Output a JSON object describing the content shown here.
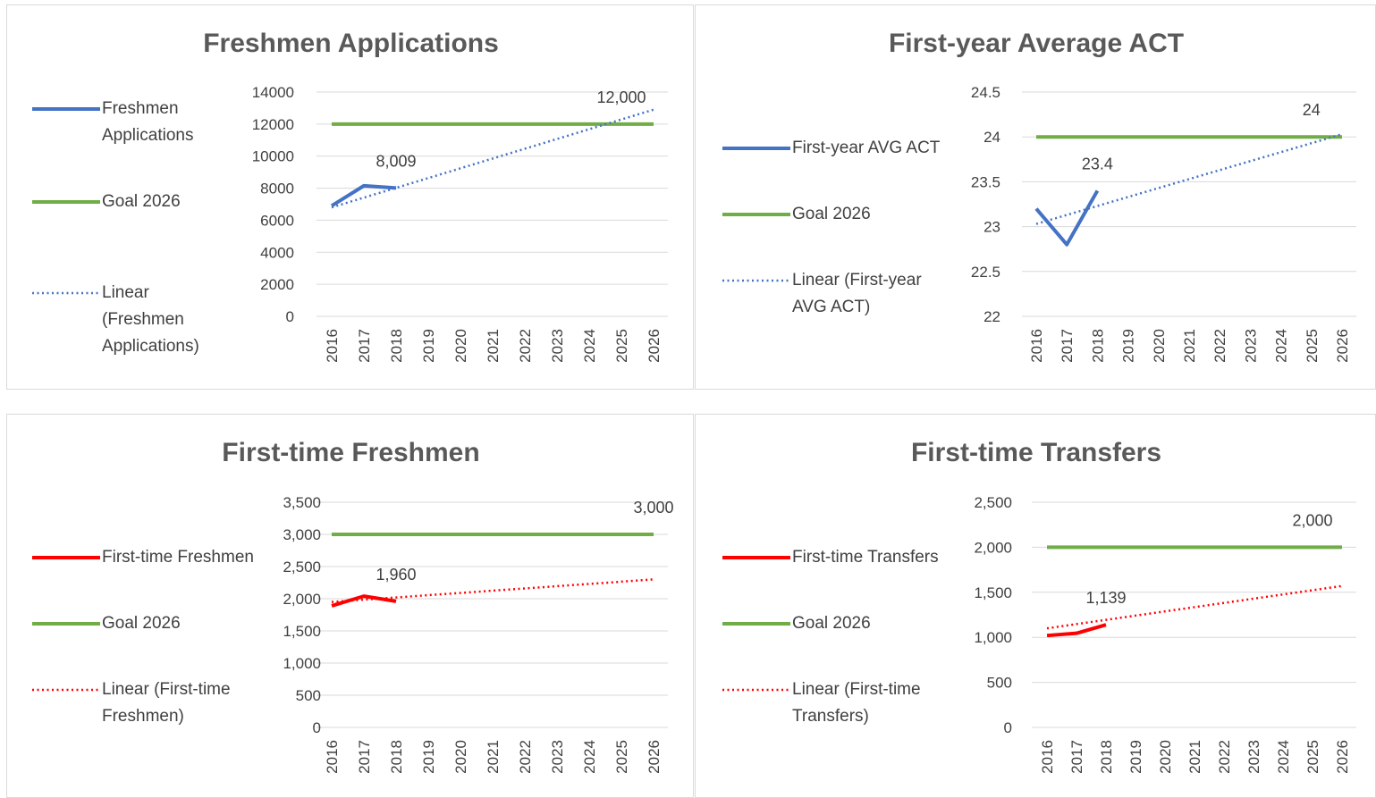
{
  "chart_data": [
    {
      "type": "line",
      "title": "Freshmen Applications",
      "categories": [
        "2016",
        "2017",
        "2018",
        "2019",
        "2020",
        "2021",
        "2022",
        "2023",
        "2024",
        "2025",
        "2026"
      ],
      "ylim": [
        0,
        14000
      ],
      "yticks": [
        0,
        2000,
        4000,
        6000,
        8000,
        10000,
        12000,
        14000
      ],
      "grid": true,
      "legend": "left",
      "series": [
        {
          "name": "Freshmen Applications",
          "color": "#4472c4",
          "line_style": "solid",
          "values": [
            6900,
            8150,
            8009,
            null,
            null,
            null,
            null,
            null,
            null,
            null,
            null
          ],
          "value_labels": [
            null,
            null,
            "8,009",
            null,
            null,
            null,
            null,
            null,
            null,
            null,
            null
          ]
        },
        {
          "name": "Goal 2026",
          "color": "#70ad47",
          "line_style": "solid",
          "values": [
            12000,
            12000,
            12000,
            12000,
            12000,
            12000,
            12000,
            12000,
            12000,
            12000,
            12000
          ],
          "value_labels": [
            null,
            null,
            null,
            null,
            null,
            null,
            null,
            null,
            null,
            "12,000",
            null
          ]
        },
        {
          "name": "Linear (Freshmen Applications)",
          "color": "#4472c4",
          "line_style": "dotted",
          "values": [
            6800,
            7410,
            8020,
            8630,
            9240,
            9850,
            10460,
            11070,
            11680,
            12290,
            12900
          ]
        }
      ]
    },
    {
      "type": "line",
      "title": "First-year Average ACT",
      "categories": [
        "2016",
        "2017",
        "2018",
        "2019",
        "2020",
        "2021",
        "2022",
        "2023",
        "2024",
        "2025",
        "2026"
      ],
      "ylim": [
        22,
        24.5
      ],
      "yticks": [
        22,
        22.5,
        23,
        23.5,
        24,
        24.5
      ],
      "grid": true,
      "legend": "left",
      "series": [
        {
          "name": "First-year AVG ACT",
          "color": "#4472c4",
          "line_style": "solid",
          "values": [
            23.2,
            22.8,
            23.4,
            null,
            null,
            null,
            null,
            null,
            null,
            null,
            null
          ],
          "value_labels": [
            null,
            null,
            "23.4",
            null,
            null,
            null,
            null,
            null,
            null,
            null,
            null
          ]
        },
        {
          "name": "Goal 2026",
          "color": "#70ad47",
          "line_style": "solid",
          "values": [
            24,
            24,
            24,
            24,
            24,
            24,
            24,
            24,
            24,
            24,
            24
          ],
          "value_labels": [
            null,
            null,
            null,
            null,
            null,
            null,
            null,
            null,
            null,
            "24",
            null
          ]
        },
        {
          "name": "Linear (First-year AVG ACT)",
          "color": "#4472c4",
          "line_style": "dotted",
          "values": [
            23.03,
            23.13,
            23.23,
            23.33,
            23.43,
            23.53,
            23.63,
            23.73,
            23.83,
            23.93,
            24.03
          ]
        }
      ]
    },
    {
      "type": "line",
      "title": "First-time Freshmen",
      "categories": [
        "2016",
        "2017",
        "2018",
        "2019",
        "2020",
        "2021",
        "2022",
        "2023",
        "2024",
        "2025",
        "2026"
      ],
      "ylim": [
        0,
        3500
      ],
      "yticks": [
        0,
        500,
        {
          "value": 1000,
          "label": "1,000"
        },
        {
          "value": 1500,
          "label": "1,500"
        },
        {
          "value": 2000,
          "label": "2,000"
        },
        {
          "value": 2500,
          "label": "2,500"
        },
        {
          "value": 3000,
          "label": "3,000"
        },
        {
          "value": 3500,
          "label": "3,500"
        }
      ],
      "grid": true,
      "legend": "left",
      "series": [
        {
          "name": "First-time Freshmen",
          "color": "#ff0000",
          "line_style": "solid",
          "values": [
            1890,
            2040,
            1960,
            null,
            null,
            null,
            null,
            null,
            null,
            null,
            null
          ],
          "value_labels": [
            null,
            null,
            "1,960",
            null,
            null,
            null,
            null,
            null,
            null,
            null,
            null
          ]
        },
        {
          "name": "Goal 2026",
          "color": "#70ad47",
          "line_style": "solid",
          "values": [
            3000,
            3000,
            3000,
            3000,
            3000,
            3000,
            3000,
            3000,
            3000,
            3000,
            3000
          ],
          "value_labels": [
            null,
            null,
            null,
            null,
            null,
            null,
            null,
            null,
            null,
            null,
            "3,000"
          ]
        },
        {
          "name": "Linear (First-time Freshmen)",
          "color": "#ff0000",
          "line_style": "dotted",
          "values": [
            1950,
            1985,
            2020,
            2055,
            2090,
            2125,
            2160,
            2195,
            2230,
            2265,
            2300
          ]
        }
      ]
    },
    {
      "type": "line",
      "title": "First-time Transfers",
      "categories": [
        "2016",
        "2017",
        "2018",
        "2019",
        "2020",
        "2021",
        "2022",
        "2023",
        "2024",
        "2025",
        "2026"
      ],
      "ylim": [
        0,
        2500
      ],
      "yticks": [
        0,
        500,
        {
          "value": 1000,
          "label": "1,000"
        },
        {
          "value": 1500,
          "label": "1,500"
        },
        {
          "value": 2000,
          "label": "2,000"
        },
        {
          "value": 2500,
          "label": "2,500"
        }
      ],
      "grid": true,
      "legend": "left",
      "series": [
        {
          "name": "First-time Transfers",
          "color": "#ff0000",
          "line_style": "solid",
          "values": [
            1020,
            1045,
            1139,
            null,
            null,
            null,
            null,
            null,
            null,
            null,
            null
          ],
          "value_labels": [
            null,
            null,
            "1,139",
            null,
            null,
            null,
            null,
            null,
            null,
            null,
            null
          ]
        },
        {
          "name": "Goal 2026",
          "color": "#70ad47",
          "line_style": "solid",
          "values": [
            2000,
            2000,
            2000,
            2000,
            2000,
            2000,
            2000,
            2000,
            2000,
            2000,
            2000
          ],
          "value_labels": [
            null,
            null,
            null,
            null,
            null,
            null,
            null,
            null,
            null,
            "2,000",
            null
          ]
        },
        {
          "name": "Linear (First-time Transfers)",
          "color": "#ff0000",
          "line_style": "dotted",
          "values": [
            1100,
            1147,
            1194,
            1241,
            1288,
            1335,
            1382,
            1429,
            1476,
            1523,
            1570
          ]
        }
      ]
    }
  ]
}
